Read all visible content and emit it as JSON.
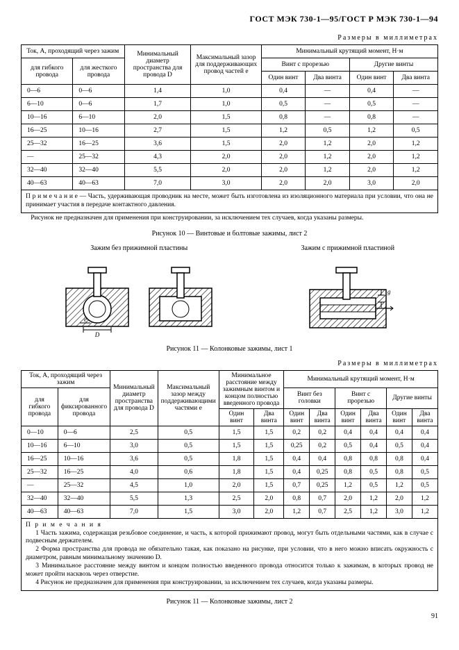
{
  "header": "ГОСТ МЭК 730-1—95/ГОСТ Р МЭК 730-1—94",
  "units": "Размеры в миллиметрах",
  "table1": {
    "h_current": "Ток, А, проходящий через зажим",
    "h_flex": "для гибкого провода",
    "h_rigid": "для жесткого провода",
    "h_diam": "Минимальный диаметр пространства для провода D",
    "h_gap": "Максимальный зазор для поддерживающих провод частей e",
    "h_torque": "Минимальный крутящий момент, Н·м",
    "h_slot": "Винт с прорезью",
    "h_other": "Другие винты",
    "h_one": "Один винт",
    "h_two": "Два винта",
    "rows": [
      [
        "0—6",
        "0—6",
        "1,4",
        "1,0",
        "0,4",
        "—",
        "0,4",
        "—"
      ],
      [
        "6—10",
        "0—6",
        "1,7",
        "1,0",
        "0,5",
        "—",
        "0,5",
        "—"
      ],
      [
        "10—16",
        "6—10",
        "2,0",
        "1,5",
        "0,8",
        "—",
        "0,8",
        "—"
      ],
      [
        "16—25",
        "10—16",
        "2,7",
        "1,5",
        "1,2",
        "0,5",
        "1,2",
        "0,5"
      ],
      [
        "25—32",
        "16—25",
        "3,6",
        "1,5",
        "2,0",
        "1,2",
        "2,0",
        "1,2"
      ],
      [
        "—",
        "25—32",
        "4,3",
        "2,0",
        "2,0",
        "1,2",
        "2,0",
        "1,2"
      ],
      [
        "32—40",
        "32—40",
        "5,5",
        "2,0",
        "2,0",
        "1,2",
        "2,0",
        "1,2"
      ],
      [
        "40—63",
        "40—63",
        "7,0",
        "3,0",
        "2,0",
        "2,0",
        "3,0",
        "2,0"
      ]
    ],
    "note": "П р и м е ч а н и е — Часть, удерживающая проводник на месте, может быть изготовлена из изоляционного материала при условии, что она не принимает участия в передаче контактного давления."
  },
  "para1": "Рисунок не предназначен для применения при конструировании, за исключением тех случаев, когда указаны размеры.",
  "caption10": "Рисунок 10 — Винтовые и болтовые зажимы, лист 2",
  "fig_label_left": "Зажим без прижимной пластины",
  "fig_label_right": "Зажим с прижимной пластиной",
  "caption11a": "Рисунок 11 — Колонковые зажимы, лист 1",
  "table2": {
    "h_current": "Ток, А, проходящий через зажим",
    "h_flex": "для гибкого провода",
    "h_fixed": "для фиксированного провода",
    "h_diam": "Минимальный диаметр пространства для провода D",
    "h_gap": "Максимальный зазор между поддерживающими частями e",
    "h_dist": "Минимальное расстояние между зажимным винтом и концом полностью введенного провода",
    "h_torque": "Минимальный крутящий момент, Н·м",
    "h_nohead": "Винт без головки",
    "h_slot": "Винт с прорезью",
    "h_other": "Другие винты",
    "h_one": "Один винт",
    "h_two": "Два винта",
    "rows": [
      [
        "0—10",
        "0—6",
        "2,5",
        "0,5",
        "1,5",
        "1,5",
        "0,2",
        "0,2",
        "0,4",
        "0,4",
        "0,4",
        "0,4"
      ],
      [
        "10—16",
        "6—10",
        "3,0",
        "0,5",
        "1,5",
        "1,5",
        "0,25",
        "0,2",
        "0,5",
        "0,4",
        "0,5",
        "0,4"
      ],
      [
        "16—25",
        "10—16",
        "3,6",
        "0,5",
        "1,8",
        "1,5",
        "0,4",
        "0,4",
        "0,8",
        "0,8",
        "0,8",
        "0,4"
      ],
      [
        "25—32",
        "16—25",
        "4,0",
        "0,6",
        "1,8",
        "1,5",
        "0,4",
        "0,25",
        "0,8",
        "0,5",
        "0,8",
        "0,5"
      ],
      [
        "—",
        "25—32",
        "4,5",
        "1,0",
        "2,0",
        "1,5",
        "0,7",
        "0,25",
        "1,2",
        "0,5",
        "1,2",
        "0,5"
      ],
      [
        "32—40",
        "32—40",
        "5,5",
        "1,3",
        "2,5",
        "2,0",
        "0,8",
        "0,7",
        "2,0",
        "1,2",
        "2,0",
        "1,2"
      ],
      [
        "40—63",
        "40—63",
        "7,0",
        "1,5",
        "3,0",
        "2,0",
        "1,2",
        "0,7",
        "2,5",
        "1,2",
        "3,0",
        "1,2"
      ]
    ],
    "notes_title": "П р и м е ч а н и я",
    "note1": "1  Часть зажима, содержащая резьбовое соединение, и часть, к которой прижимают провод, могут быть отдельными частями, как в случае с подвесным держателем.",
    "note2": "2  Форма пространства для провода не обязательно такая, как показано на рисунке, при условии, что в него можно вписать окружность с диаметром, равным минимальному значению D.",
    "note3": "3  Минимальное расстояние между винтом и концом полностью введенного провода относится только к зажимам, в которых провод не может пройти насквозь через отверстие.",
    "note4": "4  Рисунок не предназначен для применения при конструировании, за исключением тех случаев, когда указаны размеры."
  },
  "caption11b": "Рисунок 11 — Колонковые зажимы, лист 2",
  "pagenum": "91",
  "colors": {
    "hatch": "#000000",
    "metal_fill": "#ffffff"
  }
}
